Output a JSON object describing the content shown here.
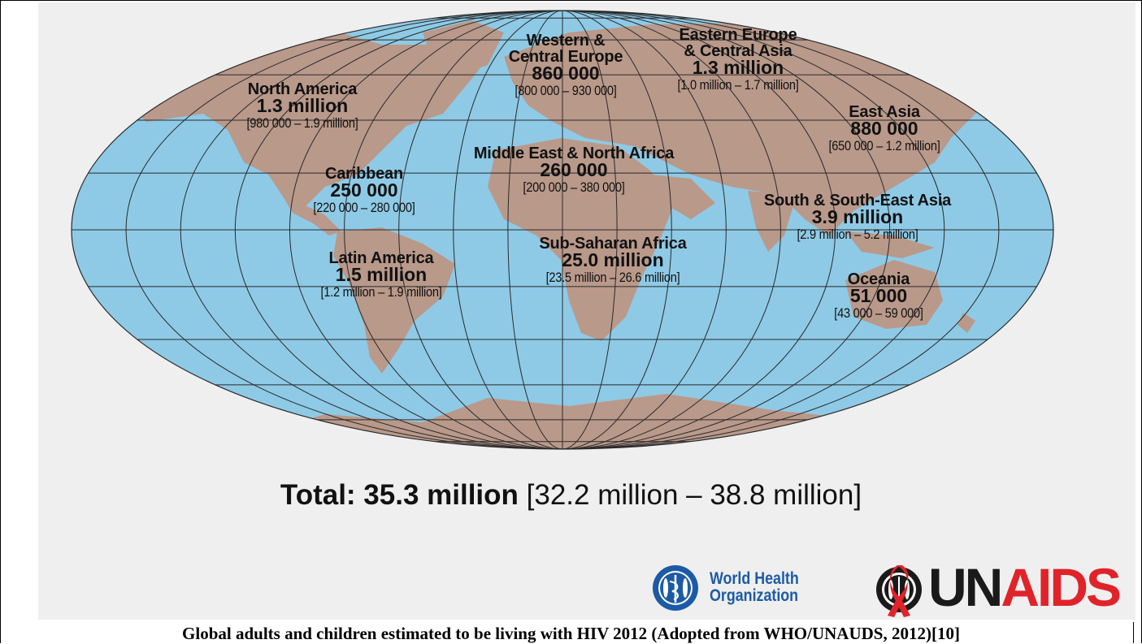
{
  "regions": [
    {
      "key": "north_america",
      "name": "North America",
      "value": "1.3 million",
      "range": "[980 000 – 1.9 million]"
    },
    {
      "key": "caribbean",
      "name": "Caribbean",
      "value": "250 000",
      "range": "[220 000 – 280 000]"
    },
    {
      "key": "latin_america",
      "name": "Latin America",
      "value": "1.5 million",
      "range": "[1.2 million – 1.9 million]"
    },
    {
      "key": "western_europe",
      "name1": "Western &",
      "name2": "Central Europe",
      "value": "860 000",
      "range": "[800 000 – 930 000]"
    },
    {
      "key": "eastern_europe",
      "name1": "Eastern Europe",
      "name2": "& Central Asia",
      "value": "1.3 million",
      "range": "[1.0 million – 1.7 million]"
    },
    {
      "key": "middle_east",
      "name": "Middle East & North Africa",
      "value": "260 000",
      "range": "[200 000 – 380 000]"
    },
    {
      "key": "ssa",
      "name": "Sub-Saharan Africa",
      "value": "25.0 million",
      "range": "[23.5 million – 26.6 million]"
    },
    {
      "key": "east_asia",
      "name": "East Asia",
      "value": "880 000",
      "range": "[650 000 – 1.2 million]"
    },
    {
      "key": "south_asia",
      "name": "South & South-East Asia",
      "value": "3.9 million",
      "range": "[2.9 million – 5.2 million]"
    },
    {
      "key": "oceania",
      "name": "Oceania",
      "value": "51 000",
      "range": "[43 000 – 59 000]"
    }
  ],
  "total": {
    "label": "Total: 35.3 million",
    "range": "[32.2 million – 38.8 million]"
  },
  "logos": {
    "who_line1": "World Health",
    "who_line2": "Organization",
    "unaids_un": "UN",
    "unaids_aids": "AIDS"
  },
  "caption": "Global adults and children estimated to be living with HIV 2012 (Adopted from WHO/UNAUDS, 2012)[10]",
  "colors": {
    "ocean": "#8ecae6",
    "land": "#b9998a",
    "grid": "#2a2a2a",
    "panel": "#efefef",
    "who_blue": "#1d5aa6",
    "unaids_red": "#e0232a"
  }
}
